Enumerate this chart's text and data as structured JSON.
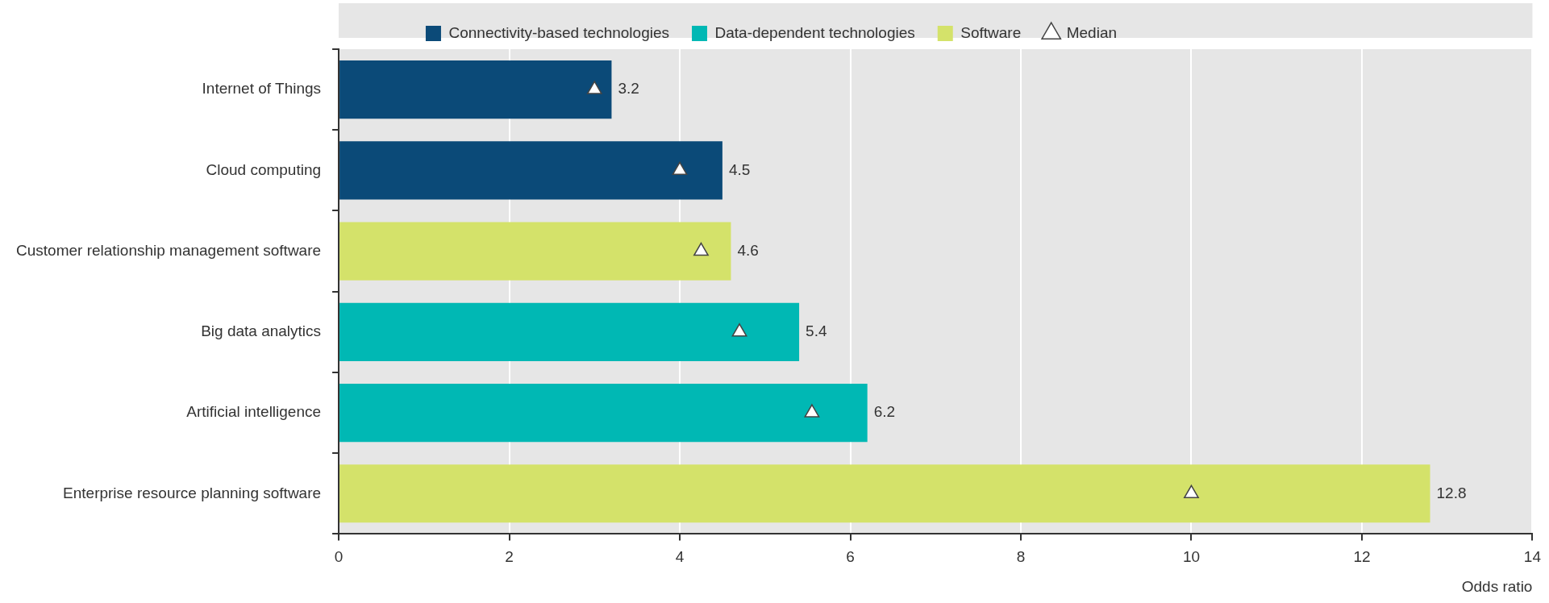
{
  "chart_data": {
    "type": "bar",
    "orientation": "horizontal",
    "stacked": true,
    "categories": [
      "Internet of Things",
      "Cloud computing",
      "Customer relationship management software",
      "Big data analytics",
      "Artificial intelligence",
      "Enterprise resource planning software"
    ],
    "series": [
      {
        "name": "Connectivity-based technologies",
        "color": "#0b4a78",
        "values": [
          3.2,
          4.5,
          null,
          null,
          null,
          null
        ],
        "value_labels": [
          "3.2",
          "4.5",
          null,
          null,
          null,
          null
        ]
      },
      {
        "name": "Data-dependent technologies",
        "color": "#00b8b4",
        "values": [
          null,
          null,
          null,
          5.4,
          6.2,
          null
        ],
        "value_labels": [
          null,
          null,
          null,
          "5.4",
          "6.2",
          null
        ]
      },
      {
        "name": "Software",
        "color": "#d4e26a",
        "values": [
          null,
          null,
          4.6,
          null,
          null,
          12.8
        ],
        "value_labels": [
          null,
          null,
          "4.6",
          null,
          null,
          "12.8"
        ]
      },
      {
        "name": "Median",
        "type": "scatter",
        "marker": "triangle",
        "color": "#ffffff",
        "values": [
          3.0,
          4.0,
          4.25,
          4.7,
          5.55,
          10.0
        ]
      }
    ],
    "xlabel": "Odds ratio",
    "xlim": [
      0,
      14
    ],
    "xticks": [
      0,
      2,
      4,
      6,
      8,
      10,
      12,
      14
    ],
    "grid": "x",
    "legend": "top"
  }
}
